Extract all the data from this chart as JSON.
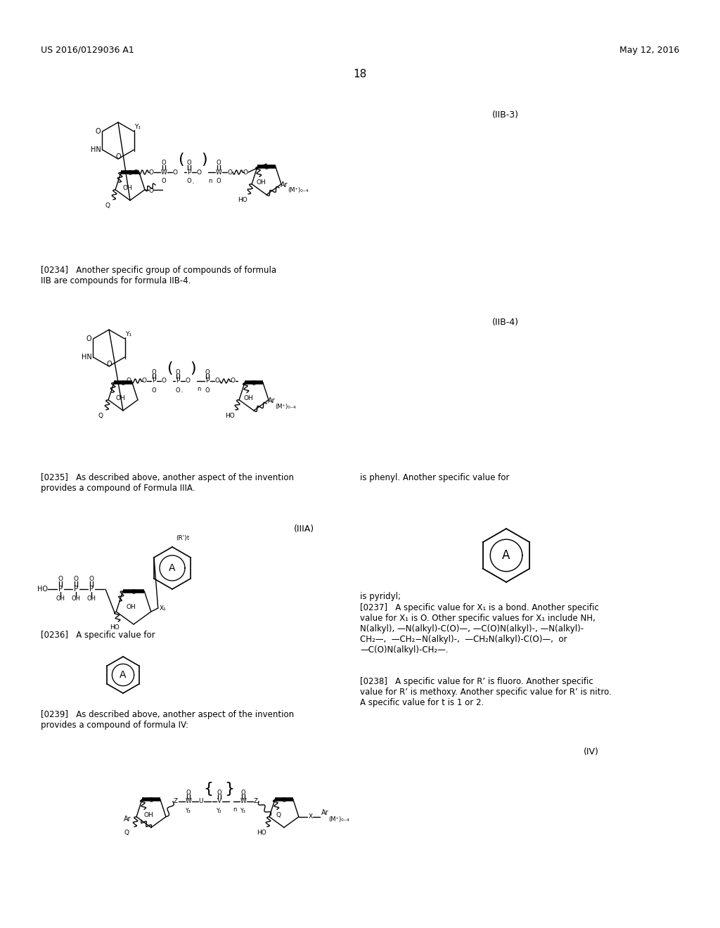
{
  "background_color": "#ffffff",
  "header_left": "US 2016/0129036 A1",
  "header_right": "May 12, 2016",
  "page_number": "18",
  "formula_IIB3_label": "(IIB-3)",
  "formula_IIB4_label": "(IIB-4)",
  "formula_IIIA_label": "(IIIA)",
  "formula_IV_label": "(IV)",
  "para_0234": "[0234]   Another specific group of compounds of formula\nIIB are compounds for formula IIB-4.",
  "para_0235_left": "[0235]   As described above, another aspect of the invention\nprovides a compound of Formula IIIA.",
  "para_0235_right": "is phenyl. Another specific value for",
  "para_0236": "[0236]   A specific value for",
  "para_0237": "[0237]   A specific value for X₁ is a bond. Another specific\nvalue for X₁ is O. Other specific values for X₁ include NH,\nN(alkyl), —N(alkyl)-C(O)—, —C(O)N(alkyl)-, —N(alkyl)-\nCH₂—,  —CH₂−N(alkyl)-,  —CH₂N(alkyl)-C(O)—,  or\n—C(O)N(alkyl)-CH₂—.",
  "para_0238": "[0238]   A specific value for R’ is fluoro. Another specific\nvalue for R’ is methoxy. Another specific value for R’ is nitro.\nA specific value for t is 1 or 2.",
  "para_0239": "[0239]   As described above, another aspect of the invention\nprovides a compound of formula IV:",
  "is_pyridyl": "is pyridyl;"
}
